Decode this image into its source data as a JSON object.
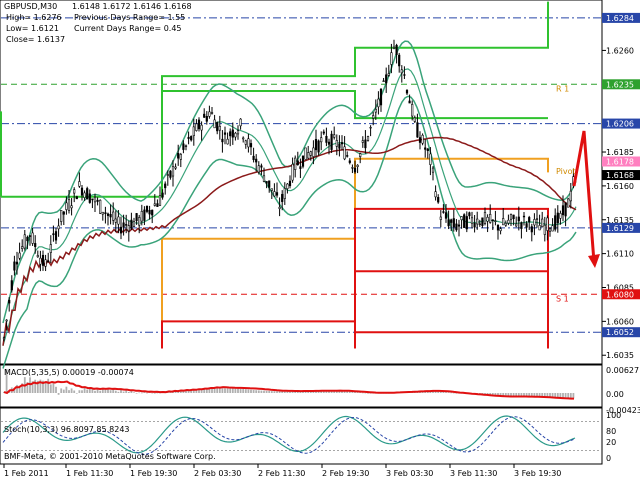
{
  "main": {
    "title": "GBPUSD,M30",
    "ohlc": "1.6148 1.6172 1.6146 1.6168",
    "high": "High= 1.6276",
    "low": "Low= 1.6121",
    "close": "Close= 1.6137",
    "prev_range": "Previous Days Range= 1.55",
    "cur_range": "Current Days Range= 0.45",
    "ylim": [
      1.603,
      1.6295
    ],
    "ticks": [
      "1.6260",
      "1.6185",
      "1.6160",
      "1.6135",
      "1.6110",
      "1.6085",
      "1.6060",
      "1.6035"
    ],
    "tick_values": [
      1.626,
      1.6185,
      1.616,
      1.6135,
      1.611,
      1.6085,
      1.606,
      1.6035
    ],
    "levels": [
      {
        "label": "1.6284",
        "value": 1.6284,
        "color": "#2846a8",
        "text": "#ffffff",
        "style": "dashdot"
      },
      {
        "label": "1.6235",
        "value": 1.6235,
        "color": "#2fa12f",
        "text": "#ffffff",
        "style": "dashed"
      },
      {
        "label": "1.6206",
        "value": 1.6206,
        "color": "#2846a8",
        "text": "#ffffff",
        "style": "dashdot"
      },
      {
        "label": "1.6178",
        "value": 1.6178,
        "color": "#ff80c0",
        "text": "#ffffff",
        "style": "none"
      },
      {
        "label": "1.6168",
        "value": 1.6168,
        "color": "#000000",
        "text": "#ffffff",
        "style": "none"
      },
      {
        "label": "1.6129",
        "value": 1.6129,
        "color": "#2846a8",
        "text": "#ffffff",
        "style": "dashdot"
      },
      {
        "label": "1.6080",
        "value": 1.608,
        "color": "#e01010",
        "text": "#ffffff",
        "style": "dashed"
      },
      {
        "label": "1.6052",
        "value": 1.6052,
        "color": "#2846a8",
        "text": "#ffffff",
        "style": "dashdot"
      }
    ],
    "pivot_labels": [
      {
        "text": "R 1",
        "value": 1.6232,
        "color": "#d08a00"
      },
      {
        "text": "Pivot",
        "value": 1.6171,
        "color": "#d08a00"
      },
      {
        "text": "S 1",
        "value": 1.6077,
        "color": "#e01010"
      }
    ]
  },
  "macd": {
    "label": "MACD(5,35,5) 0.00019 -0.00074",
    "ticks": [
      "0.00627",
      "0.00",
      "-0.00423"
    ]
  },
  "stoch": {
    "label": "Stoch(10,3,3) 96.8097 85.8243",
    "ticks": [
      "100",
      "80",
      "20",
      "0"
    ]
  },
  "footer": {
    "copyright": "BMF-Meta, © 2001-2010 MetaQuotes Software Corp."
  },
  "time_axis": [
    "1 Feb 2011",
    "1 Feb 11:30",
    "1 Feb 19:30",
    "2 Feb 03:30",
    "2 Feb 11:30",
    "2 Feb 19:30",
    "3 Feb 03:30",
    "3 Feb 11:30",
    "3 Feb 19:30"
  ],
  "colors": {
    "candles": "#000000",
    "bollinger": "#3aa37a",
    "ma": "#8b1a1a",
    "macd_signal": "#e01010",
    "macd_hist": "#b0b0b0",
    "stoch_main": "#2a9a8a",
    "stoch_signal": "#2846a8",
    "resistance": "#2fc22f",
    "support": "#e01010",
    "pivot": "#f0a020",
    "arrow": "#e01010"
  }
}
